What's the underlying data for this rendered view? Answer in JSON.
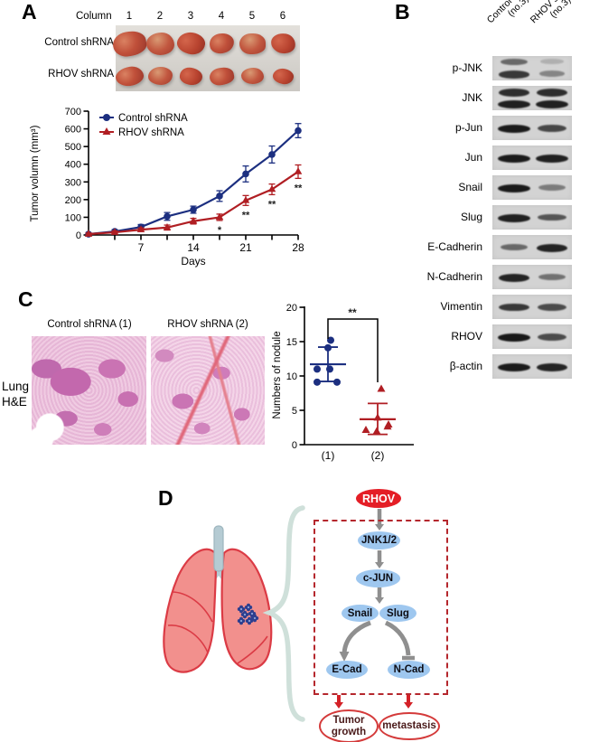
{
  "panel_a": {
    "label": "A",
    "photo": {
      "header": "Column",
      "columns": [
        "1",
        "2",
        "3",
        "4",
        "5",
        "6"
      ],
      "rows": [
        "Control shRNA",
        "RHOV shRNA"
      ]
    }
  },
  "panel_b": {
    "label": "B",
    "lanes": [
      {
        "line1": "Control shRNA",
        "line2": "(no.3)"
      },
      {
        "line1": "RHOV shRNA",
        "line2": "(no.3)"
      }
    ],
    "rows": [
      {
        "label": "p-JNK",
        "bands": [
          [
            0.55,
            0.8
          ],
          [
            0.18,
            0.4
          ]
        ]
      },
      {
        "label": "JNK",
        "bands": [
          [
            0.85,
            0.92
          ],
          [
            0.85,
            0.92
          ]
        ]
      },
      {
        "label": "p-Jun",
        "bands": [
          [
            0.95
          ],
          [
            0.72
          ]
        ]
      },
      {
        "label": "Jun",
        "bands": [
          [
            0.95
          ],
          [
            0.92
          ]
        ]
      },
      {
        "label": "Snail",
        "bands": [
          [
            0.95
          ],
          [
            0.45
          ]
        ]
      },
      {
        "label": "Slug",
        "bands": [
          [
            0.92
          ],
          [
            0.65
          ]
        ]
      },
      {
        "label": "E-Cadherin",
        "bands": [
          [
            0.55
          ],
          [
            0.9
          ]
        ]
      },
      {
        "label": "N-Cadherin",
        "bands": [
          [
            0.9
          ],
          [
            0.5
          ]
        ]
      },
      {
        "label": "Vimentin",
        "bands": [
          [
            0.8
          ],
          [
            0.7
          ]
        ]
      },
      {
        "label": "RHOV",
        "bands": [
          [
            0.97
          ],
          [
            0.7
          ]
        ]
      },
      {
        "label": "β-actin",
        "bands": [
          [
            0.95
          ],
          [
            0.9
          ]
        ]
      }
    ]
  },
  "panel_c": {
    "label": "C",
    "image_titles": [
      "Control shRNA (1)",
      "RHOV shRNA (2)"
    ],
    "side_label": [
      "Lung",
      "H&E"
    ]
  },
  "panel_d": {
    "label": "D",
    "nodes": {
      "rhov": "RHOV",
      "jnk": "JNK1/2",
      "cjun": "c-JUN",
      "snail": "Snail",
      "slug": "Slug",
      "ecad": "E-Cad",
      "ncad": "N-Cad"
    },
    "outputs": {
      "growth": "Tumor growth",
      "metastasis": "metastasis"
    }
  },
  "chart_data": [
    {
      "type": "line",
      "xlabel": "Days",
      "ylabel": "Tumor volumn (mm³)",
      "xlim": [
        0,
        28
      ],
      "ylim": [
        0,
        700
      ],
      "xticks_labeled": [
        7,
        14,
        21,
        28
      ],
      "xticks_minor": [
        3.5,
        10.5,
        17.5,
        24.5
      ],
      "yticks": [
        0,
        100,
        200,
        300,
        400,
        500,
        600,
        700
      ],
      "x": [
        0,
        3.5,
        7,
        10.5,
        14,
        17.5,
        21,
        24.5,
        28
      ],
      "series": [
        {
          "name": "Control shRNA",
          "color": "#1c2f80",
          "marker": "circle",
          "values": [
            5,
            20,
            45,
            105,
            143,
            220,
            345,
            455,
            590
          ],
          "errors": [
            8,
            10,
            14,
            22,
            20,
            30,
            45,
            48,
            40
          ]
        },
        {
          "name": "RHOV shRNA",
          "color": "#b01e23",
          "marker": "triangle",
          "values": [
            5,
            15,
            30,
            42,
            78,
            100,
            195,
            258,
            358
          ],
          "errors": [
            6,
            8,
            10,
            14,
            16,
            18,
            28,
            30,
            38
          ]
        }
      ],
      "significance": [
        {
          "x": 17.5,
          "label": "*"
        },
        {
          "x": 21,
          "label": "**"
        },
        {
          "x": 24.5,
          "label": "**"
        },
        {
          "x": 28,
          "label": "**"
        }
      ],
      "legend_position": "top-left",
      "grid": false
    },
    {
      "type": "scatter",
      "ylabel": "Numbers of nodule",
      "ylim": [
        0,
        20
      ],
      "yticks": [
        0,
        5,
        10,
        15,
        20
      ],
      "categories": [
        "(1)",
        "(2)"
      ],
      "groups": [
        {
          "name": "Control shRNA (1)",
          "color": "#1c2f80",
          "marker": "circle",
          "values": [
            15.2,
            14.1,
            11,
            11,
            9.1,
            9.1
          ],
          "x_jitter": [
            3,
            0,
            -12,
            2,
            -12,
            10
          ],
          "mean": 11.7,
          "sd_low": 9.2,
          "sd_high": 14.2
        },
        {
          "name": "RHOV shRNA (2)",
          "color": "#b01e23",
          "marker": "triangle",
          "values": [
            8.1,
            3.9,
            2.9,
            2.1,
            1.9,
            2.6
          ],
          "x_jitter": [
            4,
            0,
            12,
            -13,
            -1,
            11
          ],
          "mean": 3.7,
          "sd_low": 1.5,
          "sd_high": 6.0
        }
      ],
      "significance": {
        "label": "**"
      }
    }
  ],
  "colors": {
    "series_blue": "#1c2f80",
    "series_red": "#b01e23",
    "node_fill": "#9ec7ef",
    "rhov_red": "#e41e26",
    "dashed_box_red": "#b5272d",
    "arrow_gray": "#8f8f8f",
    "lung_pink": "#f2908d",
    "lung_outline": "#db3b45",
    "trachea_teal": "#b5cbd3",
    "brace_teal": "#cfe0da",
    "tumor_cluster_blue": "#2e3f8f",
    "output_text": "#4a1a1a"
  }
}
